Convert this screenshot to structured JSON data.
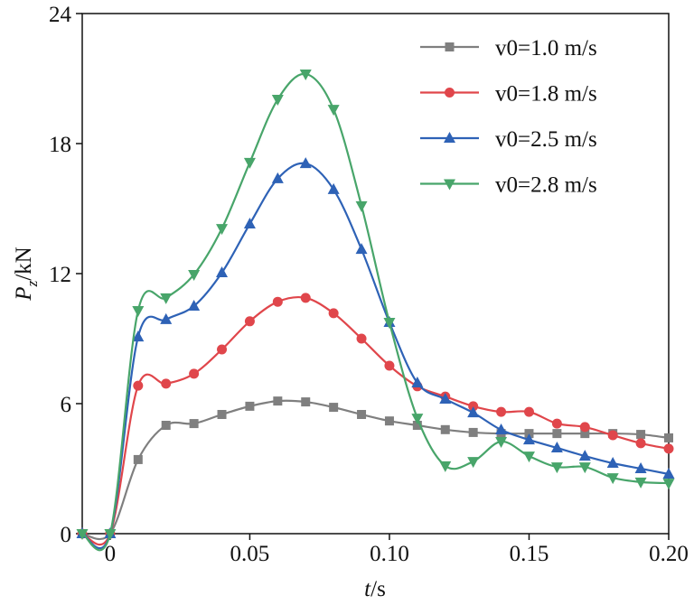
{
  "chart_data": {
    "type": "line",
    "x_label": {
      "symbol": "t",
      "unit": "/s"
    },
    "y_label": {
      "symbol": "P",
      "subscript": "z",
      "unit": "/kN"
    },
    "x": [
      -0.01,
      0,
      0.01,
      0.02,
      0.03,
      0.04,
      0.05,
      0.06,
      0.07,
      0.08,
      0.09,
      0.1,
      0.11,
      0.12,
      0.13,
      0.14,
      0.15,
      0.16,
      0.17,
      0.18,
      0.19,
      0.2
    ],
    "xlim": [
      -0.01,
      0.2
    ],
    "xticks": [
      0,
      0.05,
      {
        "value": 0.1,
        "label": "0.10"
      },
      0.15,
      {
        "value": 0.2,
        "label": "0.20"
      }
    ],
    "ylim": [
      0,
      24
    ],
    "yticks": [
      0,
      6,
      12,
      18,
      24
    ],
    "smooth": true,
    "legend": "upper right",
    "series": [
      {
        "name": "v0=1.0 m/s",
        "color": "#7f7f7f",
        "marker": "square",
        "values": [
          0,
          0,
          3.42,
          5.0,
          5.08,
          5.5,
          5.88,
          6.12,
          6.08,
          5.83,
          5.5,
          5.2,
          5.0,
          4.8,
          4.67,
          4.62,
          4.62,
          4.62,
          4.62,
          4.62,
          4.58,
          4.42
        ]
      },
      {
        "name": "v0=1.8 m/s",
        "color": "#e0464b",
        "marker": "circle",
        "values": [
          0,
          0,
          6.83,
          6.92,
          7.38,
          8.5,
          9.8,
          10.7,
          10.88,
          10.17,
          9.0,
          7.75,
          6.8,
          6.33,
          5.88,
          5.62,
          5.62,
          5.08,
          4.92,
          4.54,
          4.17,
          3.92
        ]
      },
      {
        "name": "v0=2.5 m/s",
        "color": "#2e62b6",
        "marker": "triangle-up",
        "values": [
          0,
          0,
          9.08,
          9.88,
          10.5,
          12.04,
          14.29,
          16.38,
          17.08,
          15.88,
          13.12,
          9.75,
          6.96,
          6.21,
          5.58,
          4.79,
          4.33,
          3.96,
          3.58,
          3.25,
          3.0,
          2.75
        ]
      },
      {
        "name": "v0=2.8 m/s",
        "color": "#48a56a",
        "marker": "triangle-down",
        "values": [
          0,
          0,
          10.29,
          10.88,
          11.96,
          14.08,
          17.13,
          20.04,
          21.21,
          19.58,
          15.13,
          9.75,
          5.33,
          3.13,
          3.33,
          4.25,
          3.58,
          3.08,
          3.08,
          2.58,
          2.38,
          2.33
        ]
      }
    ]
  }
}
